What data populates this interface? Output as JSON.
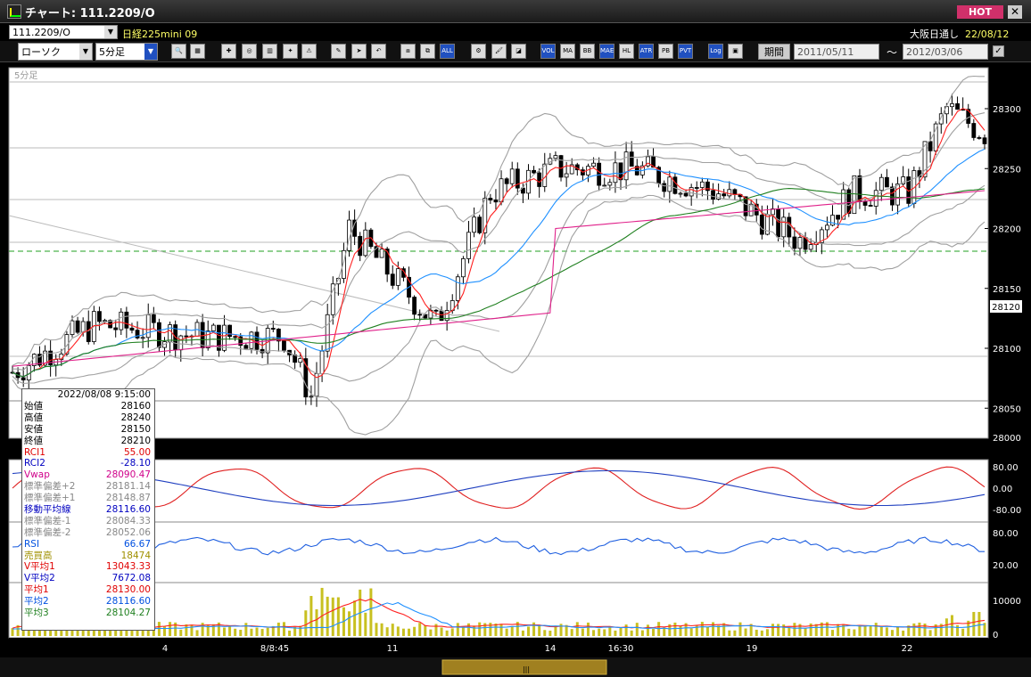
{
  "window": {
    "title": "チャート: 111.2209/O",
    "hot_label": "HOT",
    "close_glyph": "✕"
  },
  "header": {
    "symbol": "111.2209/O",
    "instrument": "日経225mini 09",
    "session": "大阪日通し",
    "date": "22/08/12"
  },
  "toolbar": {
    "chart_type": "ローソク",
    "interval": "5分足",
    "period_label": "期間",
    "date_from": "2011/05/11",
    "date_to": "2012/03/06",
    "tilde": "〜",
    "buttons": [
      {
        "name": "zoom-icon",
        "label": "🔍"
      },
      {
        "name": "table-icon",
        "label": "▦"
      },
      {
        "name": "cross-cursor-icon",
        "label": "✚"
      },
      {
        "name": "magnify-icon",
        "label": "◎"
      },
      {
        "name": "bar-chart-icon",
        "label": "▥"
      },
      {
        "name": "candle-icon",
        "label": "✦"
      },
      {
        "name": "warning-icon",
        "label": "⚠"
      },
      {
        "name": "pencil-icon",
        "label": "✎"
      },
      {
        "name": "arrow-cursor-icon",
        "label": "➤"
      },
      {
        "name": "undo-icon",
        "label": "↶"
      },
      {
        "name": "compare-icon",
        "label": "⧈"
      },
      {
        "name": "split-icon",
        "label": "⧉"
      },
      {
        "name": "all-icon",
        "label": "ALL"
      },
      {
        "name": "gear-icon",
        "label": "⚙"
      },
      {
        "name": "brush-icon",
        "label": "🖌"
      },
      {
        "name": "palette-icon",
        "label": "◪"
      },
      {
        "name": "volume-icon",
        "label": "VOL"
      },
      {
        "name": "ma-icon",
        "label": "MA"
      },
      {
        "name": "bb-icon",
        "label": "BB"
      },
      {
        "name": "mae-icon",
        "label": "MAE"
      },
      {
        "name": "hl-icon",
        "label": "HL"
      },
      {
        "name": "atr-icon",
        "label": "ATR"
      },
      {
        "name": "pb-icon",
        "label": "PB"
      },
      {
        "name": "pvt-icon",
        "label": "PVT"
      },
      {
        "name": "log-icon",
        "label": "Log"
      },
      {
        "name": "window-icon",
        "label": "▣"
      }
    ]
  },
  "chart": {
    "pane_label": "5分足",
    "price_ticks": [
      "28300",
      "28250",
      "28200",
      "28150",
      "28100",
      "28050",
      "28000"
    ],
    "current_price": "28120",
    "rci_ticks": [
      "80.00",
      "0.00",
      "-80.00"
    ],
    "rsi_ticks": [
      "80.00",
      "20.00"
    ],
    "vol_ticks": [
      "10000",
      "0"
    ],
    "date_labels": [
      "4",
      "8/8:45",
      "11",
      "14",
      "16:30",
      "19",
      "22"
    ],
    "colors": {
      "up": "#ffffff",
      "down": "#000000",
      "ma_short": "#ff2020",
      "ma_mid": "#1e90ff",
      "ma_long": "#208020",
      "vwap": "#e0208a",
      "band": "#a0a0a0",
      "rci1": "#e02020",
      "rci2": "#2040c0",
      "rsi": "#2060e0",
      "volume": "#c8c020",
      "dashed": "#20a020"
    }
  },
  "info": {
    "datetime": "2022/08/08 9:15:00",
    "rows": [
      {
        "label": "始値",
        "value": "28160",
        "color": "#000"
      },
      {
        "label": "高値",
        "value": "28240",
        "color": "#000"
      },
      {
        "label": "安値",
        "value": "28150",
        "color": "#000"
      },
      {
        "label": "終値",
        "value": "28210",
        "color": "#000"
      },
      {
        "label": "RCI1",
        "value": "55.00",
        "color": "#e00000"
      },
      {
        "label": "RCI2",
        "value": "-28.10",
        "color": "#0000c0"
      },
      {
        "label": "Vwap",
        "value": "28090.47",
        "color": "#d0008a"
      },
      {
        "label": "標準偏差+2",
        "value": "28181.14",
        "color": "#888"
      },
      {
        "label": "標準偏差+1",
        "value": "28148.87",
        "color": "#888"
      },
      {
        "label": "移動平均線",
        "value": "28116.60",
        "color": "#0000c0"
      },
      {
        "label": "標準偏差-1",
        "value": "28084.33",
        "color": "#888"
      },
      {
        "label": "標準偏差-2",
        "value": "28052.06",
        "color": "#888"
      },
      {
        "label": "RSI",
        "value": "66.67",
        "color": "#0050e0"
      },
      {
        "label": "売買高",
        "value": "18474",
        "color": "#a09000"
      },
      {
        "label": "V平均1",
        "value": "13043.33",
        "color": "#e00000"
      },
      {
        "label": "V平均2",
        "value": "7672.08",
        "color": "#0000c0"
      },
      {
        "label": "平均1",
        "value": "28130.00",
        "color": "#e00000"
      },
      {
        "label": "平均2",
        "value": "28116.60",
        "color": "#0050e0"
      },
      {
        "label": "平均3",
        "value": "28104.27",
        "color": "#208020"
      }
    ]
  }
}
